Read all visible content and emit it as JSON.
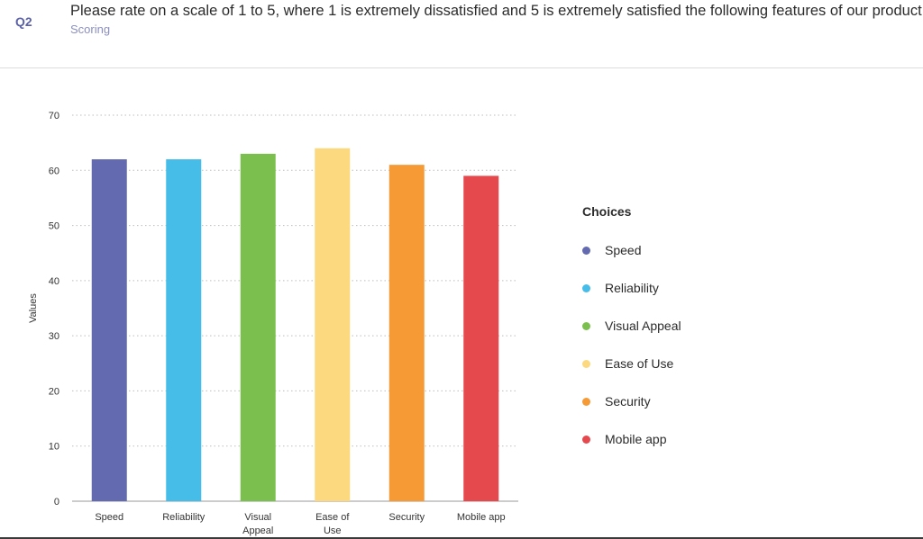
{
  "question": {
    "number": "Q2",
    "text": "Please rate on a scale of 1 to 5, where 1 is extremely dissatisfied and 5 is extremely satisfied the following features of our product:",
    "subtitle": "Scoring"
  },
  "legend": {
    "title": "Choices",
    "placement": "right"
  },
  "chart_data": {
    "type": "bar",
    "categories": [
      "Speed",
      "Reliability",
      "Visual Appeal",
      "Ease of Use",
      "Security",
      "Mobile app"
    ],
    "category_tick_lines": [
      [
        "Speed"
      ],
      [
        "Reliability"
      ],
      [
        "Visual",
        "Appeal"
      ],
      [
        "Ease of",
        "Use"
      ],
      [
        "Security"
      ],
      [
        "Mobile app"
      ]
    ],
    "values": [
      62,
      62,
      63,
      64,
      61,
      59
    ],
    "colors": [
      "#636ab0",
      "#45bde8",
      "#7bc04f",
      "#fcd97f",
      "#f59a35",
      "#e5494d"
    ],
    "ylabel": "Values",
    "xlabel": "",
    "ylim": [
      0,
      70
    ],
    "yticks": [
      0,
      10,
      20,
      30,
      40,
      50,
      60,
      70
    ],
    "grid": true,
    "grid_style": "dotted"
  }
}
